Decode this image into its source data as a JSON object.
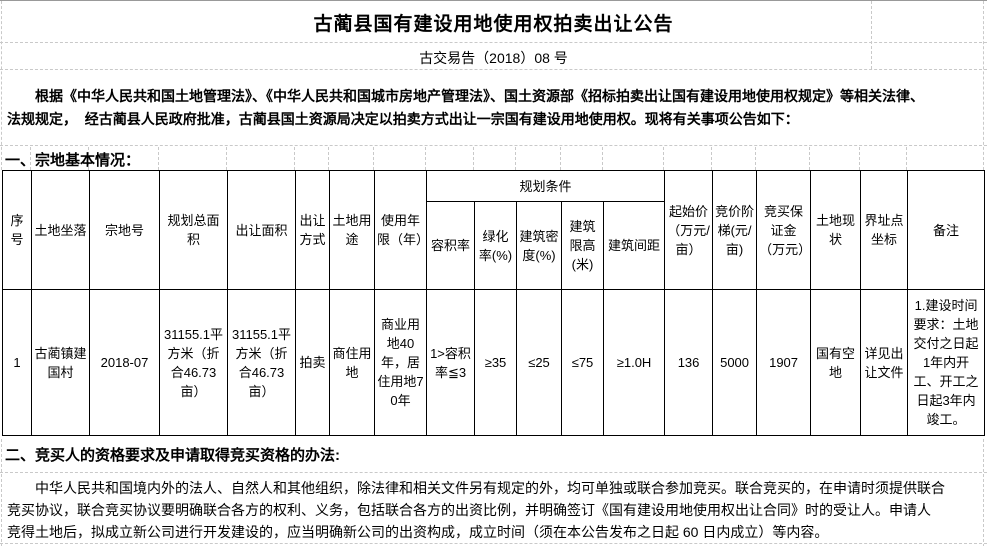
{
  "page": {
    "title": "古蔺县国有建设用地使用权拍卖出让公告",
    "doc_number": "古交易告（2018）08 号",
    "intro_paragraph": "根据《中华人民共和国土地管理法》、《中华人民共和国城市房地产管理法》、国土资源部《招标拍卖出让国有建设用地使用权规定》等相关法律、\n法规规定，  经古蔺县人民政府批准，古蔺县国土资源局决定以拍卖方式出让一宗国有建设用地使用权。现将有关事项公告如下：",
    "section1_heading": "一、宗地基本情况：",
    "section2_heading": "二、竞买人的资格要求及申请取得竞买资格的办法:",
    "section2_paragraph": "中华人民共和国境内外的法人、自然人和其他组织，除法律和相关文件另有规定的外，均可单独或联合参加竞买。联合竞买的，在申请时须提供联合\n竞买协议，联合竞买协议要明确联合各方的权利、义务，包括联合各方的出资比例，并明确签订《国有建设用地使用权出让合同》时的受让人。申请人\n竞得土地后，拟成立新公司进行开发建设的，应当明确新公司的出资构成，成立时间（须在本公告发布之日起 60 日内成立）等内容。"
  },
  "table": {
    "group_header": "规划条件",
    "columns": [
      "序号",
      "土地坐落",
      "宗地号",
      "规划总面积",
      "出让面积",
      "出让方式",
      "土地用途",
      "使用年限（年）",
      "容积率",
      "绿化率(%)",
      "建筑密度(%)",
      "建筑限高(米)",
      "建筑间距",
      "起始价（万元/亩）",
      "竞价阶梯(元/亩)",
      "竞买保证金（万元）",
      "土地现状",
      "界址点坐标",
      "备注"
    ],
    "rows": [
      [
        "1",
        "古蔺镇建国村",
        "2018-07",
        "31155.1平方米（折合46.73亩）",
        "31155.1平方米（折合46.73亩）",
        "拍卖",
        "商住用地",
        "商业用地40年，居住用地70年",
        "1>容积率≦3",
        "≥35",
        "≤25",
        "≤75",
        "≥1.0H",
        "136",
        "5000",
        "1907",
        "国有空地",
        "详见出让文件",
        "1.建设时间要求：土地交付之日起1年内开工、开工之日起3年内竣工。"
      ]
    ]
  }
}
